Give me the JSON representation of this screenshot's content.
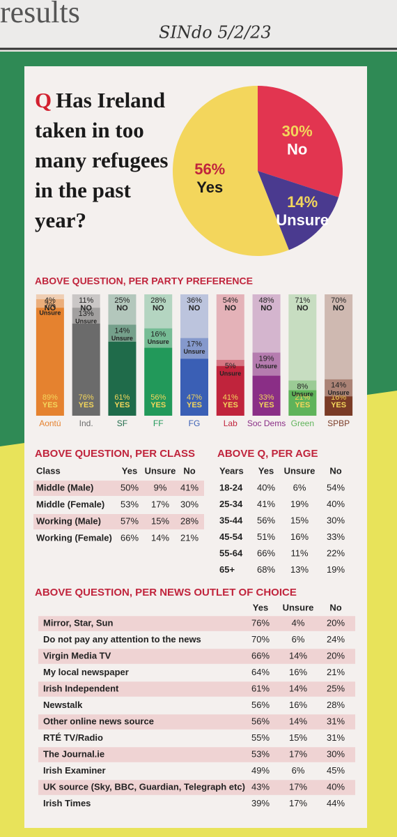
{
  "header": {
    "section": "results",
    "handwriting": "SINdo 5/2/23"
  },
  "question": {
    "marker": "Q",
    "text": "Has Ireland taken in too many refugees in the past year?"
  },
  "chart_data": [
    {
      "type": "pie",
      "categories": [
        "Yes",
        "No",
        "Unsure"
      ],
      "values": [
        56,
        30,
        14
      ],
      "value_labels": [
        "56%",
        "30%",
        "14%"
      ],
      "colors": [
        "#f3d65c",
        "#e23550",
        "#4a3a8f"
      ]
    },
    {
      "type": "stacked_bar",
      "title": "ABOVE QUESTION, PER PARTY PREFERENCE",
      "categories": [
        "Aontú",
        "Ind.",
        "SF",
        "FF",
        "FG",
        "Lab",
        "Soc Dems",
        "Green",
        "SPBP"
      ],
      "colors": [
        "#e5822f",
        "#6b6b6b",
        "#1f6b4a",
        "#22995a",
        "#3a5fb5",
        "#c0243c",
        "#8a2e86",
        "#5fb35a",
        "#7a3b26"
      ],
      "series": [
        {
          "name": "YES",
          "values": [
            89,
            76,
            61,
            56,
            47,
            41,
            33,
            21,
            16
          ],
          "value_labels": [
            "89%",
            "76%",
            "61%",
            "56%",
            "47%",
            "41%",
            "33%",
            "21%",
            "16%"
          ]
        },
        {
          "name": "Unsure",
          "values": [
            7,
            13,
            14,
            16,
            17,
            5,
            19,
            8,
            14
          ],
          "value_labels": [
            "7%",
            "13%",
            "14%",
            "16%",
            "17%",
            "5%",
            "19%",
            "8%",
            "14%"
          ]
        },
        {
          "name": "NO",
          "values": [
            4,
            11,
            25,
            28,
            36,
            54,
            48,
            71,
            70
          ],
          "value_labels": [
            "4%",
            "11%",
            "25%",
            "28%",
            "36%",
            "54%",
            "48%",
            "71%",
            "70%"
          ]
        }
      ]
    }
  ],
  "class_table": {
    "title": "ABOVE QUESTION, PER CLASS",
    "header": [
      "Class",
      "Yes",
      "Unsure",
      "No"
    ],
    "rows": [
      [
        "Middle (Male)",
        "50%",
        "9%",
        "41%"
      ],
      [
        "Middle (Female)",
        "53%",
        "17%",
        "30%"
      ],
      [
        "Working (Male)",
        "57%",
        "15%",
        "28%"
      ],
      [
        "Working (Female)",
        "66%",
        "14%",
        "21%"
      ]
    ]
  },
  "age_table": {
    "title": "ABOVE Q, PER AGE",
    "header": [
      "Years",
      "Yes",
      "Unsure",
      "No"
    ],
    "rows": [
      [
        "18-24",
        "40%",
        "6%",
        "54%"
      ],
      [
        "25-34",
        "41%",
        "19%",
        "40%"
      ],
      [
        "35-44",
        "56%",
        "15%",
        "30%"
      ],
      [
        "45-54",
        "51%",
        "16%",
        "33%"
      ],
      [
        "55-64",
        "66%",
        "11%",
        "22%"
      ],
      [
        "65+",
        "68%",
        "13%",
        "19%"
      ]
    ]
  },
  "news_table": {
    "title": "ABOVE QUESTION, PER NEWS OUTLET OF CHOICE",
    "header": [
      "Yes",
      "Unsure",
      "No"
    ],
    "rows": [
      [
        "Mirror, Star, Sun",
        "76%",
        "4%",
        "20%"
      ],
      [
        "Do not pay any attention to the news",
        "70%",
        "6%",
        "24%"
      ],
      [
        "Virgin Media TV",
        "66%",
        "14%",
        "20%"
      ],
      [
        "My local newspaper",
        "64%",
        "16%",
        "21%"
      ],
      [
        "Irish Independent",
        "61%",
        "14%",
        "25%"
      ],
      [
        "Newstalk",
        "56%",
        "16%",
        "28%"
      ],
      [
        "Other online news source",
        "56%",
        "14%",
        "31%"
      ],
      [
        "RTÉ TV/Radio",
        "55%",
        "15%",
        "31%"
      ],
      [
        "The Journal.ie",
        "53%",
        "17%",
        "30%"
      ],
      [
        "Irish Examiner",
        "49%",
        "6%",
        "45%"
      ],
      [
        "UK source (Sky, BBC, Guardian, Telegraph etc)",
        "43%",
        "17%",
        "40%"
      ],
      [
        "Irish Times",
        "39%",
        "17%",
        "44%"
      ]
    ]
  }
}
